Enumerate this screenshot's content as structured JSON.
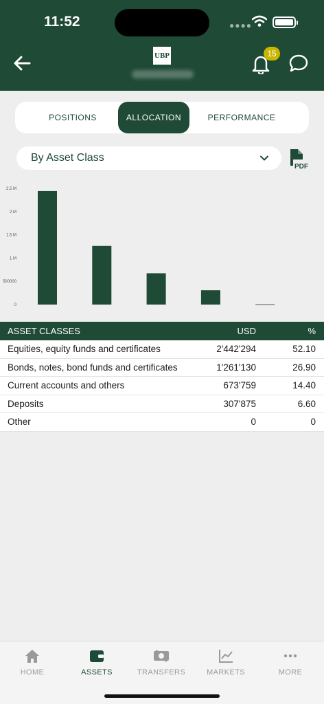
{
  "status_bar": {
    "time": "11:52"
  },
  "header": {
    "logo_text": "UBP",
    "notification_count": "15",
    "icons": {
      "back": "back-arrow-icon",
      "bell": "bell-icon",
      "chat": "chat-bubble-icon"
    }
  },
  "tabs": [
    {
      "label": "POSITIONS",
      "active": false
    },
    {
      "label": "ALLOCATION",
      "active": true
    },
    {
      "label": "PERFORMANCE",
      "active": false
    }
  ],
  "filter": {
    "selected": "By Asset Class",
    "pdf_label": "PDF"
  },
  "chart_data": {
    "type": "bar",
    "categories": [
      "Equities, equity funds and certificates",
      "Bonds, notes, bond funds and certificates",
      "Current accounts and others",
      "Deposits",
      "Other"
    ],
    "values": [
      2442294,
      1261130,
      673759,
      307875,
      0
    ],
    "ylim": [
      0,
      2500000
    ],
    "y_ticks": [
      0,
      500000,
      1000000,
      1500000,
      2000000,
      2500000
    ],
    "y_tick_labels": [
      "0",
      "500000",
      "1 M",
      "1,5 M",
      "2 M",
      "2,5 M"
    ],
    "color": "#1e4a36",
    "grid": false
  },
  "table": {
    "headers": {
      "name": "ASSET CLASSES",
      "usd": "USD",
      "pct": "%"
    },
    "rows": [
      {
        "name": "Equities, equity funds and certificates",
        "usd": "2'442'294",
        "pct": "52.10"
      },
      {
        "name": "Bonds, notes, bond funds and certificates",
        "usd": "1'261'130",
        "pct": "26.90"
      },
      {
        "name": "Current accounts and others",
        "usd": "673'759",
        "pct": "14.40"
      },
      {
        "name": "Deposits",
        "usd": "307'875",
        "pct": "6.60"
      },
      {
        "name": "Other",
        "usd": "0",
        "pct": "0"
      }
    ]
  },
  "tabbar": [
    {
      "label": "HOME",
      "icon": "home-icon",
      "active": false
    },
    {
      "label": "ASSETS",
      "icon": "wallet-icon",
      "active": true
    },
    {
      "label": "TRANSFERS",
      "icon": "transfer-icon",
      "active": false
    },
    {
      "label": "MARKETS",
      "icon": "chart-line-icon",
      "active": false
    },
    {
      "label": "MORE",
      "icon": "more-icon",
      "active": false
    }
  ],
  "colors": {
    "brand": "#1e4a36",
    "badge": "#c9b600",
    "background": "#eeeeee"
  }
}
